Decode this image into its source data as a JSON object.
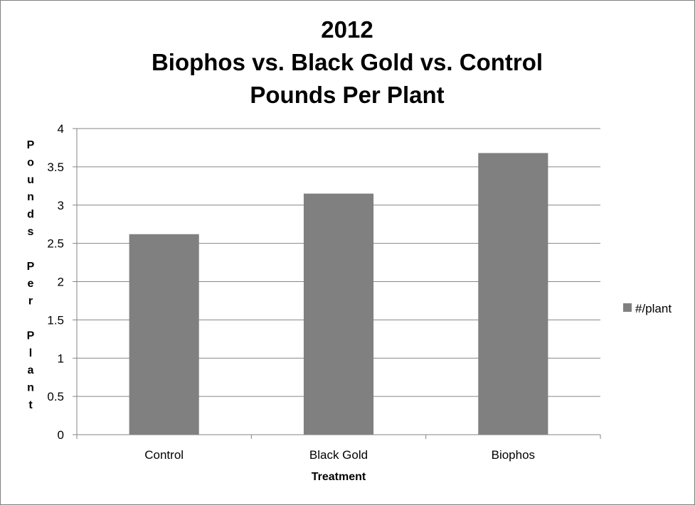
{
  "chart_data": {
    "type": "bar",
    "title_lines": [
      "2012",
      "Biophos vs. Black Gold vs. Control",
      "Pounds Per Plant"
    ],
    "categories": [
      "Control",
      "Black Gold",
      "Biophos"
    ],
    "series": [
      {
        "name": "#/plant",
        "values": [
          2.62,
          3.15,
          3.68
        ]
      }
    ],
    "xlabel": "Treatment",
    "ylabel": "Pounds Per Plant",
    "ylim": [
      0,
      4
    ],
    "yticks": [
      "0",
      "0.5",
      "1",
      "1.5",
      "2",
      "2.5",
      "3",
      "3.5",
      "4"
    ],
    "grid": true,
    "legend_position": "right"
  },
  "colors": {
    "bar": "#808080",
    "gridline": "#868686",
    "axis": "#868686"
  }
}
